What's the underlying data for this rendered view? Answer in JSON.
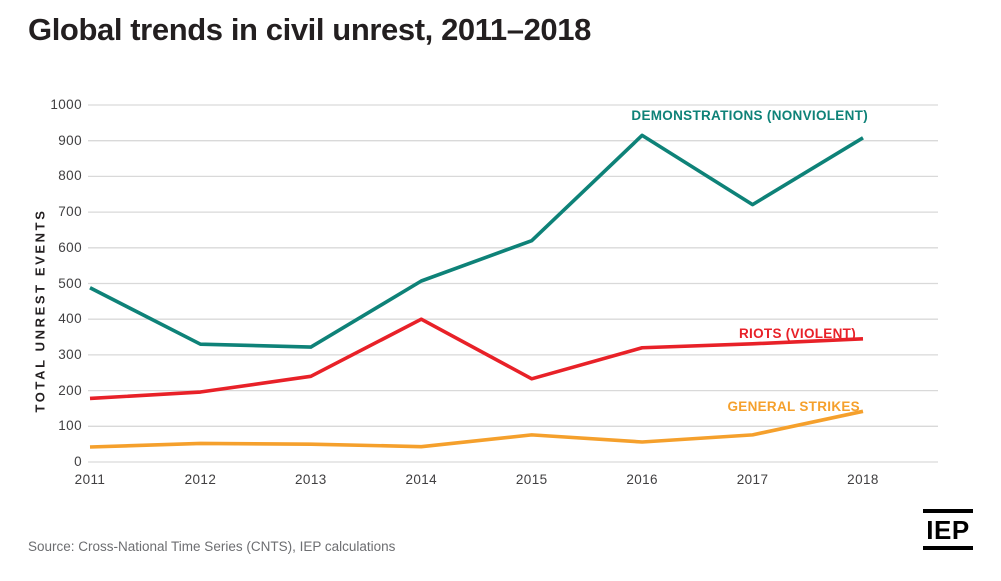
{
  "title": "Global trends in civil unrest, 2011–2018",
  "source": "Source: Cross-National Time Series (CNTS), IEP calculations",
  "logo": {
    "text": "IEP"
  },
  "colors": {
    "title_text": "#231f20",
    "axis_text": "#414042",
    "source_text": "#6d6e71",
    "gridline": "#d9d9d9"
  },
  "chart_data": {
    "type": "line",
    "title": "Global trends in civil unrest, 2011–2018",
    "x": [
      2011,
      2012,
      2013,
      2014,
      2015,
      2016,
      2017,
      2018
    ],
    "series": [
      {
        "name": "DEMONSTRATIONS (NONVIOLENT)",
        "color": "#0E8278",
        "values": [
          488,
          330,
          322,
          507,
          620,
          915,
          721,
          908
        ]
      },
      {
        "name": "RIOTS (VIOLENT)",
        "color": "#E82128",
        "values": [
          178,
          196,
          240,
          400,
          233,
          320,
          331,
          345
        ]
      },
      {
        "name": "GENERAL STRIKES",
        "color": "#F5A02C",
        "values": [
          42,
          52,
          50,
          43,
          76,
          56,
          76,
          142
        ]
      }
    ],
    "xlabel": "",
    "ylabel": "TOTAL UNREST EVENTS",
    "ylim": [
      0,
      1000
    ],
    "ytick_step": 100,
    "grid": true,
    "legend_position": "labels-on-chart"
  }
}
